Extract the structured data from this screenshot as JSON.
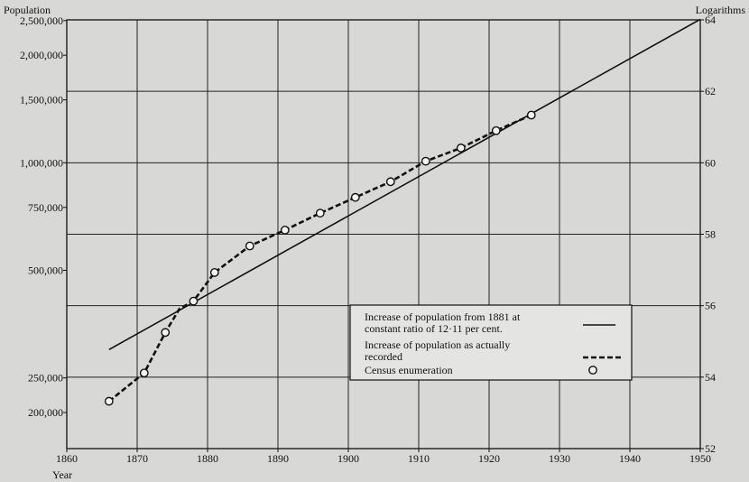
{
  "chart_data": {
    "type": "line",
    "left_axis_title": "Population",
    "right_axis_title": "Logarithms",
    "x_axis_title": "Year",
    "xlim": [
      1860,
      1950
    ],
    "x_ticks": [
      1860,
      1870,
      1880,
      1890,
      1900,
      1910,
      1920,
      1930,
      1940,
      1950
    ],
    "left_ticks": [
      {
        "label": "2,500,000",
        "value": 2500000
      },
      {
        "label": "2,000,000",
        "value": 2000000
      },
      {
        "label": "1,500,000",
        "value": 1500000
      },
      {
        "label": "1,000,000",
        "value": 1000000
      },
      {
        "label": "750,000",
        "value": 750000
      },
      {
        "label": "500,000",
        "value": 500000
      },
      {
        "label": "250,000",
        "value": 250000
      },
      {
        "label": "200,000",
        "value": 200000
      }
    ],
    "right_ticks": [
      {
        "label": "64",
        "value": 64
      },
      {
        "label": "62",
        "value": 62
      },
      {
        "label": "60",
        "value": 60
      },
      {
        "label": "58",
        "value": 58
      },
      {
        "label": "56",
        "value": 56
      },
      {
        "label": "54",
        "value": 54
      },
      {
        "label": "52",
        "value": 52
      }
    ],
    "right_ylim": [
      52,
      64
    ],
    "grid": true,
    "legend_position": "lower-right",
    "series": [
      {
        "name": "Increase of population from 1881 at constant ratio of 12·11 per cent.",
        "style": "solid",
        "x": [
          1866,
          1950
        ],
        "y": [
          300000,
          2520000
        ]
      },
      {
        "name": "Increase of population as actually recorded",
        "style": "dashed",
        "x": [
          1866,
          1871,
          1874,
          1876,
          1878,
          1881,
          1886,
          1891,
          1896,
          1901,
          1906,
          1911,
          1916,
          1921,
          1926
        ],
        "y": [
          215000,
          258000,
          335000,
          390000,
          410000,
          493000,
          585000,
          648000,
          723000,
          800000,
          885000,
          1010000,
          1100000,
          1230000,
          1360000
        ]
      },
      {
        "name": "Census enumeration",
        "style": "marker",
        "x": [
          1866,
          1871,
          1874,
          1878,
          1881,
          1886,
          1891,
          1896,
          1901,
          1906,
          1911,
          1916,
          1921,
          1926
        ],
        "y": [
          215000,
          258000,
          335000,
          410000,
          493000,
          585000,
          648000,
          723000,
          800000,
          885000,
          1010000,
          1100000,
          1230000,
          1360000
        ]
      }
    ],
    "legend": [
      {
        "lines": [
          "Increase of population from 1881 at",
          "constant ratio of 12·11 per cent."
        ],
        "style": "solid"
      },
      {
        "lines": [
          "Increase of population as actually",
          "recorded"
        ],
        "style": "dashed"
      },
      {
        "lines": [
          "Census enumeration"
        ],
        "style": "marker"
      }
    ]
  }
}
